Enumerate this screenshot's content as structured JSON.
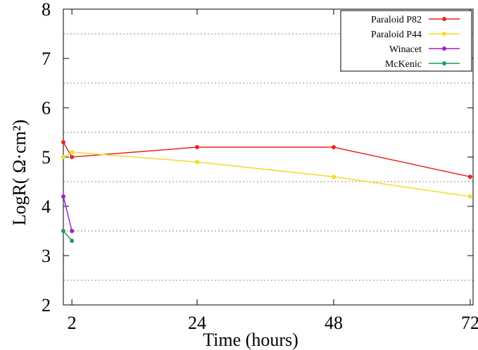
{
  "chart_data": {
    "type": "line",
    "title": "",
    "xlabel": "Time (hours)",
    "ylabel": "LogR( Ω·cm²)",
    "xlim": [
      0.5,
      72.5
    ],
    "ylim": [
      2,
      8
    ],
    "xticks": [
      2,
      24,
      48,
      72
    ],
    "yticks": [
      2,
      3,
      4,
      5,
      6,
      7,
      8
    ],
    "grid_y": [
      2.5,
      3.5,
      4.5,
      5.5,
      6.5,
      7.5
    ],
    "grid": "dotted horizontal lines at half-units",
    "legend_position": "top-right",
    "series": [
      {
        "name": "Paraloid P82",
        "color": "#e8251f",
        "x": [
          0.5,
          2,
          24,
          48,
          72
        ],
        "y": [
          5.3,
          5.0,
          5.2,
          5.2,
          4.6
        ]
      },
      {
        "name": "Paraloid P44",
        "color": "#f2dc2a",
        "x": [
          0.5,
          2,
          24,
          48,
          72
        ],
        "y": [
          5.0,
          5.1,
          4.9,
          4.6,
          4.2
        ]
      },
      {
        "name": "Winacet",
        "color": "#9b1fd6",
        "x": [
          0.5,
          2
        ],
        "y": [
          4.2,
          3.5
        ]
      },
      {
        "name": "McKenic",
        "color": "#1a9a6c",
        "x": [
          0.5,
          2
        ],
        "y": [
          3.5,
          3.3
        ]
      }
    ]
  }
}
